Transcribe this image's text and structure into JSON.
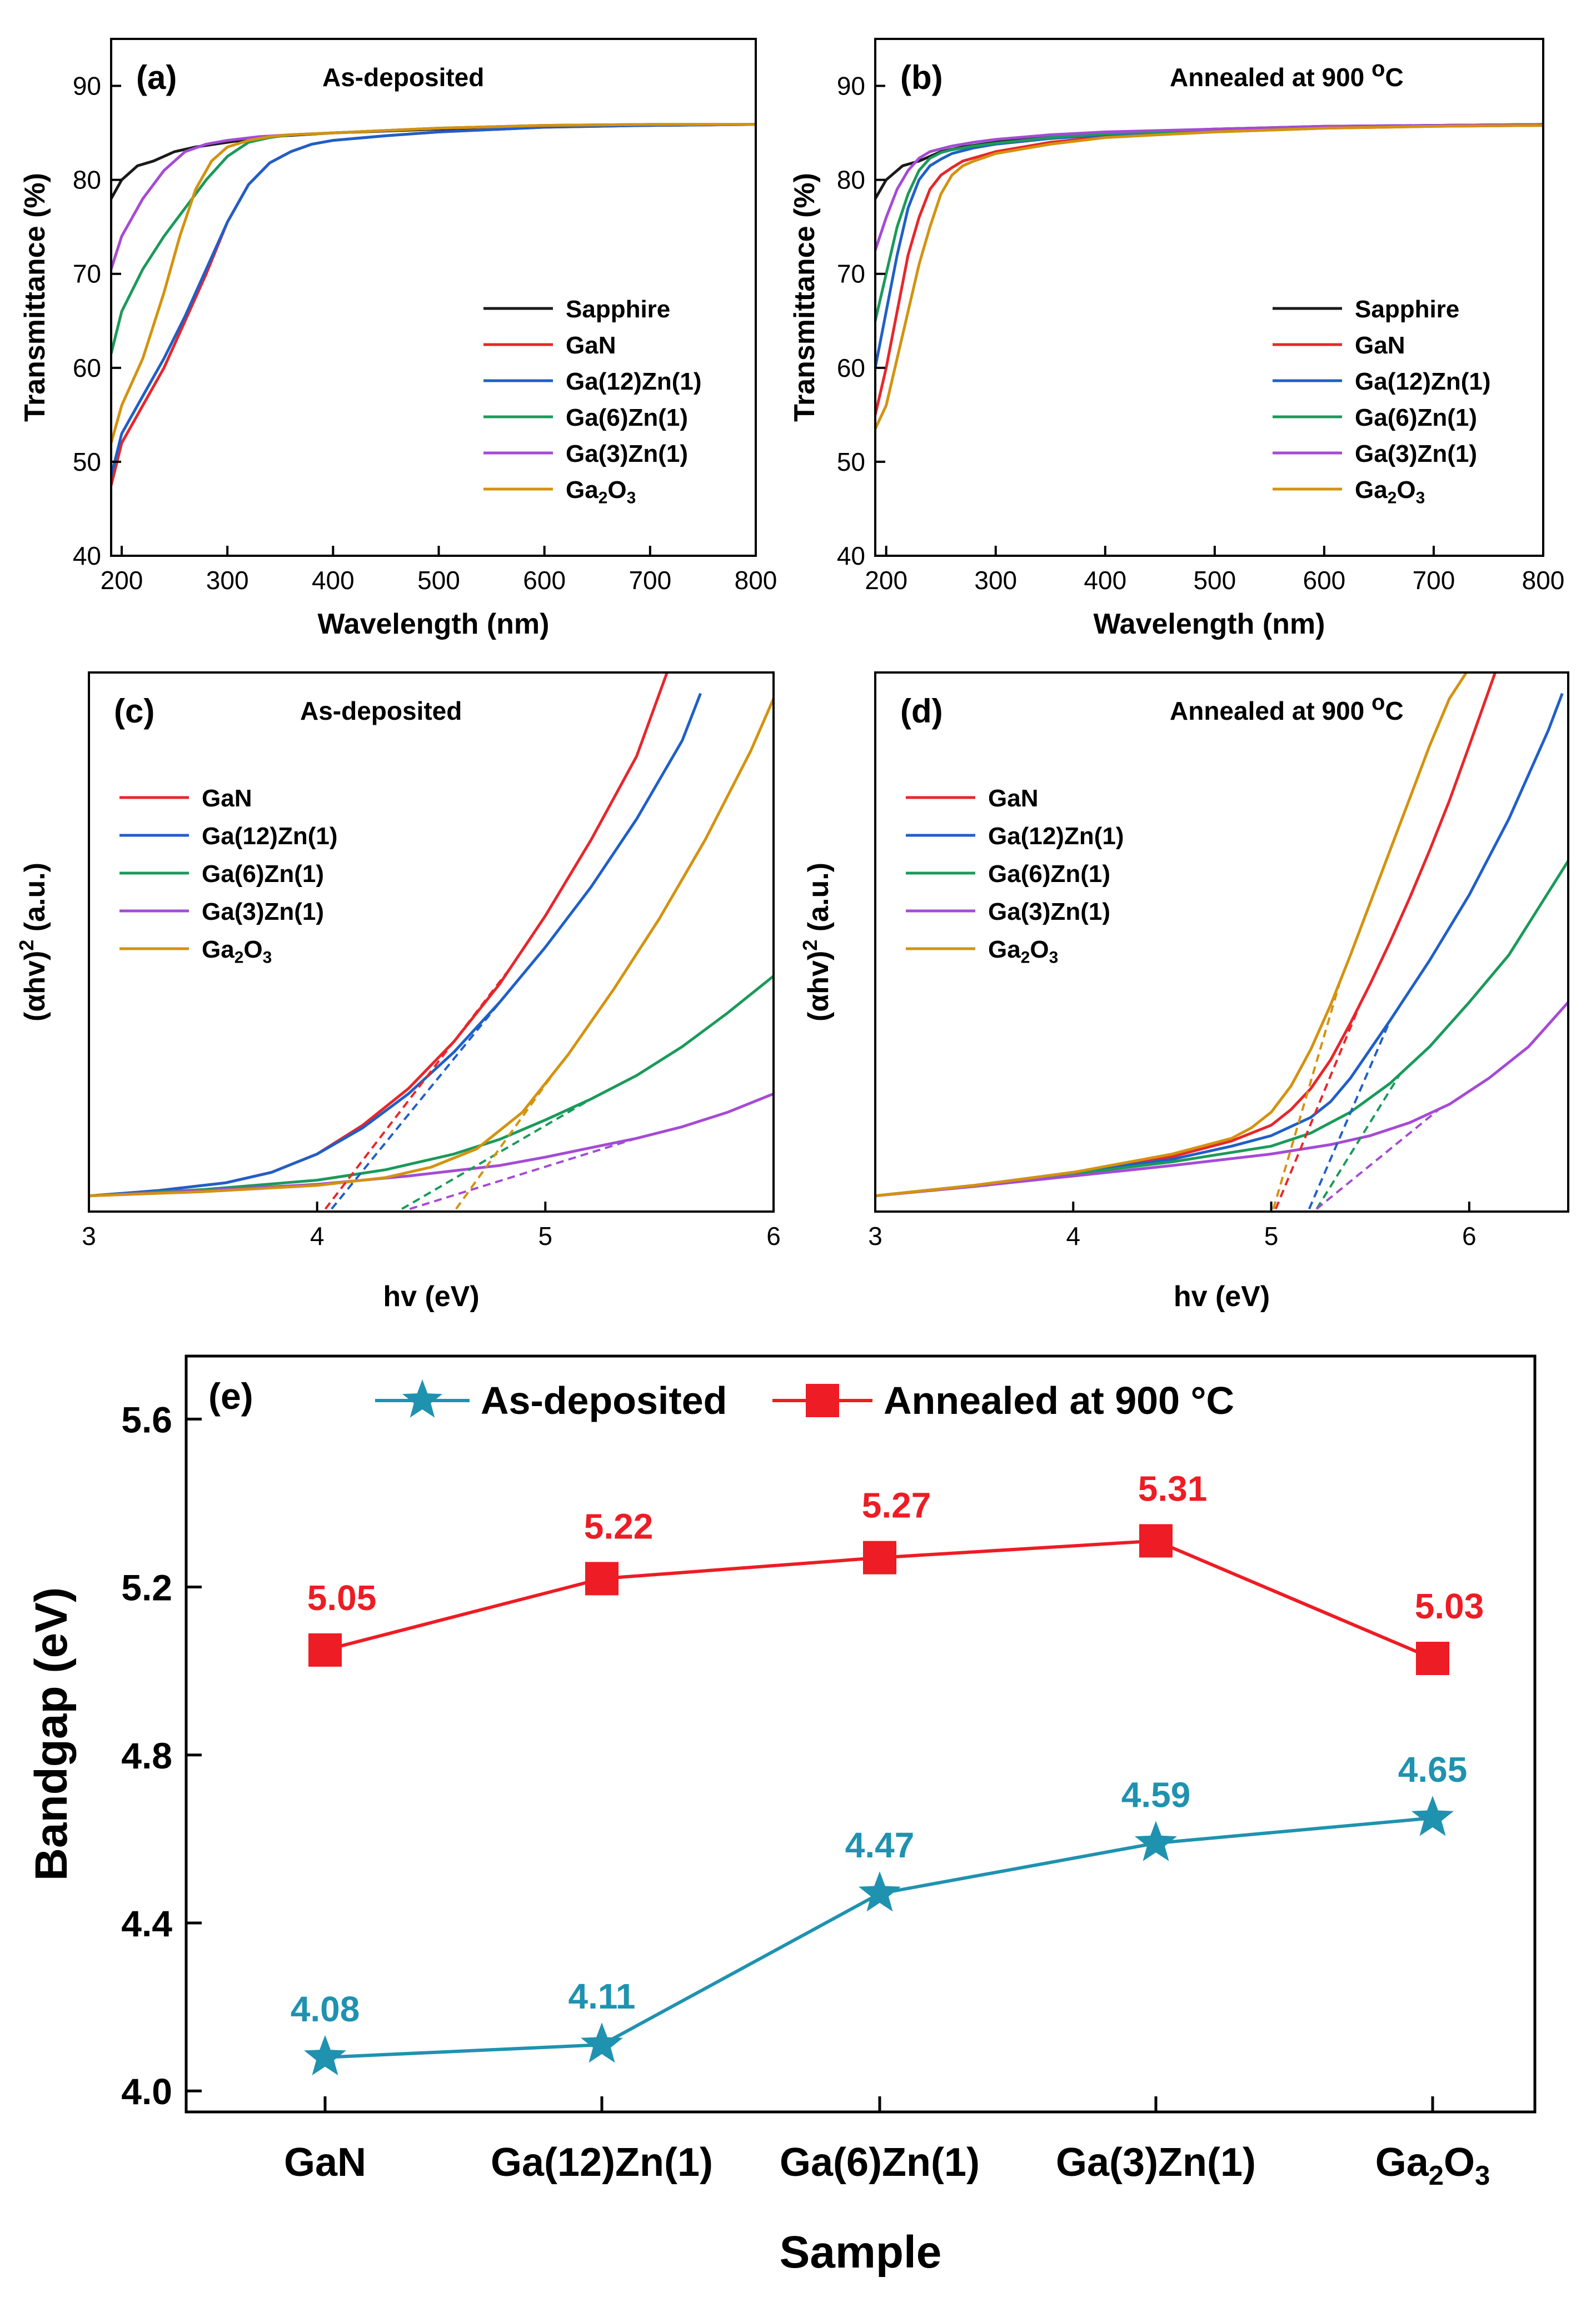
{
  "colors": {
    "sapphire": "#1a1a1a",
    "gan": "#e8262b",
    "ga12zn1": "#1f5fc8",
    "ga6zn1": "#1a9a5a",
    "ga3zn1": "#a54ad6",
    "ga2o3": "#d4920e",
    "as_deposited": "#1f92b0",
    "annealed": "#ee1c24"
  },
  "chart_data": [
    {
      "id": "a",
      "type": "line",
      "panel_label": "(a)",
      "title": "As-deposited",
      "xlabel": "Wavelength (nm)",
      "ylabel": "Transmittance (%)",
      "xlim": [
        190,
        800
      ],
      "ylim": [
        40,
        95
      ],
      "xticks": [
        200,
        300,
        400,
        500,
        600,
        700,
        800
      ],
      "yticks": [
        40,
        50,
        60,
        70,
        80,
        90
      ],
      "legend": "right",
      "series": [
        {
          "name": "Sapphire",
          "key": "sapphire",
          "x": [
            190,
            200,
            215,
            230,
            250,
            270,
            300,
            340,
            400,
            500,
            600,
            700,
            800
          ],
          "y": [
            78,
            80,
            81.5,
            82,
            83,
            83.5,
            84,
            84.6,
            85,
            85.4,
            85.7,
            85.8,
            85.9
          ]
        },
        {
          "name": "GaN",
          "key": "gan",
          "x": [
            190,
            200,
            220,
            240,
            260,
            280,
            300,
            320,
            340,
            360,
            380,
            400,
            450,
            500,
            600,
            700,
            800
          ],
          "y": [
            47.5,
            52,
            56,
            60,
            65,
            70,
            75.5,
            79.5,
            81.8,
            83,
            83.8,
            84.2,
            84.7,
            85.1,
            85.6,
            85.8,
            85.9
          ]
        },
        {
          "name": "Ga(12)Zn(1)",
          "key": "ga12zn1",
          "x": [
            190,
            200,
            220,
            240,
            260,
            280,
            300,
            320,
            340,
            360,
            380,
            400,
            450,
            500,
            600,
            700,
            800
          ],
          "y": [
            48.5,
            53,
            57,
            61,
            65.5,
            70.5,
            75.5,
            79.5,
            81.8,
            83,
            83.8,
            84.2,
            84.7,
            85.1,
            85.6,
            85.8,
            85.9
          ]
        },
        {
          "name": "Ga(6)Zn(1)",
          "key": "ga6zn1",
          "x": [
            190,
            200,
            220,
            240,
            260,
            280,
            300,
            320,
            340,
            360,
            400,
            500,
            600,
            700,
            800
          ],
          "y": [
            61.5,
            66,
            70.5,
            74,
            77,
            80,
            82.5,
            84,
            84.5,
            84.8,
            85,
            85.5,
            85.8,
            85.9,
            85.9
          ]
        },
        {
          "name": "Ga(3)Zn(1)",
          "key": "ga3zn1",
          "x": [
            190,
            200,
            220,
            240,
            260,
            280,
            300,
            330,
            360,
            400,
            500,
            600,
            700,
            800
          ],
          "y": [
            70.5,
            74,
            78,
            81,
            83,
            83.8,
            84.2,
            84.6,
            84.8,
            85,
            85.5,
            85.8,
            85.9,
            85.9
          ]
        },
        {
          "name": "Ga2O3",
          "key": "ga2o3",
          "x": [
            190,
            200,
            220,
            240,
            255,
            270,
            285,
            300,
            320,
            340,
            360,
            400,
            500,
            600,
            700,
            800
          ],
          "y": [
            52,
            56,
            61,
            68,
            74,
            79,
            82,
            83.5,
            84.2,
            84.6,
            84.8,
            85,
            85.5,
            85.8,
            85.9,
            85.9
          ]
        }
      ]
    },
    {
      "id": "b",
      "type": "line",
      "panel_label": "(b)",
      "title": "Annealed at 900 ",
      "title_sup": "o",
      "title_after": "C",
      "xlabel": "Wavelength (nm)",
      "ylabel": "Transmittance (%)",
      "xlim": [
        190,
        800
      ],
      "ylim": [
        40,
        95
      ],
      "xticks": [
        200,
        300,
        400,
        500,
        600,
        700,
        800
      ],
      "yticks": [
        40,
        50,
        60,
        70,
        80,
        90
      ],
      "legend": "right",
      "series": [
        {
          "name": "Sapphire",
          "key": "sapphire",
          "x": [
            190,
            200,
            215,
            230,
            250,
            270,
            300,
            340,
            400,
            500,
            600,
            700,
            800
          ],
          "y": [
            78,
            80,
            81.5,
            82,
            83,
            83.5,
            84,
            84.6,
            85,
            85.4,
            85.7,
            85.8,
            85.9
          ]
        },
        {
          "name": "GaN",
          "key": "gan",
          "x": [
            190,
            200,
            210,
            220,
            230,
            240,
            250,
            260,
            270,
            300,
            350,
            400,
            500,
            600,
            700,
            800
          ],
          "y": [
            55,
            60,
            66,
            72,
            76,
            79,
            80.5,
            81.3,
            82,
            83,
            84,
            84.6,
            85.1,
            85.5,
            85.7,
            85.8
          ]
        },
        {
          "name": "Ga(12)Zn(1)",
          "key": "ga12zn1",
          "x": [
            190,
            200,
            210,
            220,
            230,
            240,
            250,
            260,
            280,
            300,
            350,
            400,
            500,
            600,
            700,
            800
          ],
          "y": [
            60,
            66,
            72,
            77,
            80,
            81.5,
            82.2,
            82.8,
            83.4,
            83.8,
            84.4,
            84.8,
            85.2,
            85.6,
            85.8,
            85.9
          ]
        },
        {
          "name": "Ga(6)Zn(1)",
          "key": "ga6zn1",
          "x": [
            190,
            200,
            210,
            220,
            230,
            240,
            250,
            260,
            280,
            300,
            350,
            400,
            500,
            600,
            700,
            800
          ],
          "y": [
            65,
            70,
            75,
            78.5,
            81,
            82.3,
            82.9,
            83.2,
            83.6,
            83.9,
            84.5,
            84.9,
            85.3,
            85.6,
            85.8,
            85.9
          ]
        },
        {
          "name": "Ga(3)Zn(1)",
          "key": "ga3zn1",
          "x": [
            190,
            200,
            210,
            220,
            230,
            240,
            250,
            260,
            280,
            300,
            350,
            400,
            500,
            600,
            700,
            800
          ],
          "y": [
            72.5,
            76,
            79,
            81,
            82.3,
            83,
            83.3,
            83.6,
            84,
            84.3,
            84.8,
            85.1,
            85.4,
            85.7,
            85.8,
            85.9
          ]
        },
        {
          "name": "Ga2O3",
          "key": "ga2o3",
          "x": [
            190,
            200,
            210,
            220,
            230,
            240,
            250,
            260,
            270,
            280,
            300,
            350,
            400,
            500,
            600,
            700,
            800
          ],
          "y": [
            53.5,
            56,
            61,
            66,
            71,
            75,
            78.5,
            80.5,
            81.5,
            82,
            82.8,
            83.8,
            84.5,
            85.1,
            85.5,
            85.7,
            85.8
          ]
        }
      ]
    },
    {
      "id": "c",
      "type": "line",
      "panel_label": "(c)",
      "title": "As-deposited",
      "xlabel": "hv (eV)",
      "ylabel": "(αhv)",
      "ylabel_sup": "2",
      "ylabel_after": " (a.u.)",
      "xlim": [
        3,
        6
      ],
      "ylim": [
        -0.3,
        10
      ],
      "xticks": [
        3,
        4,
        5,
        6
      ],
      "yticks": [],
      "legend": "top-left",
      "series": [
        {
          "name": "GaN",
          "key": "gan",
          "x": [
            3,
            3.3,
            3.6,
            3.8,
            4,
            4.2,
            4.4,
            4.6,
            4.8,
            5,
            5.2,
            5.4,
            5.55
          ],
          "y": [
            0,
            0.1,
            0.25,
            0.45,
            0.8,
            1.35,
            2.05,
            2.95,
            4.05,
            5.35,
            6.8,
            8.4,
            10.2
          ]
        },
        {
          "name": "Ga(12)Zn(1)",
          "key": "ga12zn1",
          "x": [
            3,
            3.3,
            3.6,
            3.8,
            4,
            4.2,
            4.4,
            4.6,
            4.8,
            5,
            5.2,
            5.4,
            5.6,
            5.68
          ],
          "y": [
            0,
            0.1,
            0.25,
            0.45,
            0.8,
            1.3,
            1.95,
            2.75,
            3.7,
            4.75,
            5.9,
            7.2,
            8.7,
            9.6
          ]
        },
        {
          "name": "Ga(6)Zn(1)",
          "key": "ga6zn1",
          "x": [
            3,
            3.5,
            4,
            4.3,
            4.6,
            4.8,
            5,
            5.2,
            5.4,
            5.6,
            5.8,
            6
          ],
          "y": [
            0,
            0.12,
            0.3,
            0.5,
            0.8,
            1.08,
            1.45,
            1.85,
            2.3,
            2.85,
            3.5,
            4.2
          ]
        },
        {
          "name": "Ga(3)Zn(1)",
          "key": "ga3zn1",
          "x": [
            3,
            3.5,
            4,
            4.4,
            4.8,
            5,
            5.2,
            5.4,
            5.6,
            5.8,
            6
          ],
          "y": [
            0,
            0.1,
            0.22,
            0.38,
            0.58,
            0.74,
            0.92,
            1.1,
            1.32,
            1.6,
            1.95
          ]
        },
        {
          "name": "Ga2O3",
          "key": "ga2o3",
          "x": [
            3,
            3.5,
            4,
            4.3,
            4.5,
            4.7,
            4.9,
            5.1,
            5.3,
            5.5,
            5.7,
            5.9,
            6.05
          ],
          "y": [
            0,
            0.08,
            0.2,
            0.35,
            0.55,
            0.9,
            1.6,
            2.7,
            3.95,
            5.3,
            6.8,
            8.5,
            10
          ]
        }
      ],
      "tangents": [
        {
          "key": "gan",
          "x0": 4.08,
          "x1": 4.85
        },
        {
          "key": "ga12zn1",
          "x0": 4.11,
          "x1": 4.85
        },
        {
          "key": "ga6zn1",
          "x0": 4.47,
          "x1": 5.2
        },
        {
          "key": "ga3zn1",
          "x0": 4.59,
          "x1": 5.4
        },
        {
          "key": "ga2o3",
          "x0": 4.65,
          "x1": 5.05
        }
      ]
    },
    {
      "id": "d",
      "type": "line",
      "panel_label": "(d)",
      "title": "Annealed at 900 ",
      "title_sup": "o",
      "title_after": "C",
      "xlabel": "hv (eV)",
      "ylabel": "(αhv)",
      "ylabel_sup": "2",
      "ylabel_after": " (a.u.)",
      "xlim": [
        3,
        6.5
      ],
      "ylim": [
        -0.3,
        10
      ],
      "xticks": [
        3,
        4,
        5,
        6
      ],
      "yticks": [],
      "legend": "top-left",
      "series": [
        {
          "name": "GaN",
          "key": "gan",
          "x": [
            3,
            3.5,
            4,
            4.5,
            4.8,
            5,
            5.1,
            5.2,
            5.3,
            5.4,
            5.5,
            5.6,
            5.7,
            5.8,
            5.9,
            6,
            6.15
          ],
          "y": [
            0,
            0.2,
            0.45,
            0.75,
            1.05,
            1.35,
            1.65,
            2.05,
            2.6,
            3.3,
            4.05,
            4.85,
            5.7,
            6.6,
            7.55,
            8.6,
            10.2
          ]
        },
        {
          "name": "Ga(12)Zn(1)",
          "key": "ga12zn1",
          "x": [
            3,
            3.5,
            4,
            4.5,
            4.8,
            5,
            5.2,
            5.3,
            5.4,
            5.5,
            5.6,
            5.8,
            6,
            6.2,
            6.4,
            6.47
          ],
          "y": [
            0,
            0.2,
            0.45,
            0.7,
            0.95,
            1.15,
            1.5,
            1.8,
            2.25,
            2.8,
            3.35,
            4.5,
            5.75,
            7.2,
            8.9,
            9.6
          ]
        },
        {
          "name": "Ga(6)Zn(1)",
          "key": "ga6zn1",
          "x": [
            3,
            3.5,
            4,
            4.5,
            5,
            5.2,
            5.4,
            5.6,
            5.8,
            6,
            6.2,
            6.5
          ],
          "y": [
            0,
            0.2,
            0.42,
            0.65,
            0.95,
            1.2,
            1.6,
            2.15,
            2.85,
            3.7,
            4.6,
            6.4
          ]
        },
        {
          "name": "Ga(3)Zn(1)",
          "key": "ga3zn1",
          "x": [
            3,
            3.5,
            4,
            4.5,
            5,
            5.3,
            5.5,
            5.7,
            5.9,
            6.1,
            6.3,
            6.5
          ],
          "y": [
            0,
            0.18,
            0.38,
            0.58,
            0.8,
            0.98,
            1.15,
            1.4,
            1.75,
            2.25,
            2.85,
            3.7
          ]
        },
        {
          "name": "Ga2O3",
          "key": "ga2o3",
          "x": [
            3,
            3.5,
            4,
            4.5,
            4.8,
            4.9,
            5,
            5.1,
            5.2,
            5.3,
            5.4,
            5.5,
            5.6,
            5.7,
            5.8,
            5.9,
            6.02
          ],
          "y": [
            0,
            0.2,
            0.45,
            0.8,
            1.1,
            1.3,
            1.6,
            2.1,
            2.8,
            3.65,
            4.6,
            5.6,
            6.6,
            7.6,
            8.6,
            9.5,
            10.2
          ]
        }
      ],
      "tangents": [
        {
          "key": "gan",
          "x0": 5.05,
          "x1": 5.45
        },
        {
          "key": "ga12zn1",
          "x0": 5.22,
          "x1": 5.6
        },
        {
          "key": "ga6zn1",
          "x0": 5.27,
          "x1": 5.65
        },
        {
          "key": "ga3zn1",
          "x0": 5.31,
          "x1": 5.85
        },
        {
          "key": "ga2o3",
          "x0": 5.03,
          "x1": 5.35
        }
      ]
    },
    {
      "id": "e",
      "type": "line",
      "panel_label": "(e)",
      "title": "",
      "xlabel": "Sample",
      "ylabel": "Bandgap (eV)",
      "categories": [
        "GaN",
        "Ga(12)Zn(1)",
        "Ga(6)Zn(1)",
        "Ga(3)Zn(1)",
        "Ga2O3"
      ],
      "ylim": [
        3.95,
        5.75
      ],
      "yticks": [
        4.0,
        4.4,
        4.8,
        5.2,
        5.6
      ],
      "ytick_labels": [
        "4.0",
        "4.4",
        "4.8",
        "5.2",
        "5.6"
      ],
      "legend": "top",
      "series": [
        {
          "name": "As-deposited",
          "key": "as_deposited",
          "marker": "star",
          "values": [
            4.08,
            4.11,
            4.47,
            4.59,
            4.65
          ],
          "labels": [
            "4.08",
            "4.11",
            "4.47",
            "4.59",
            "4.65"
          ]
        },
        {
          "name": "Annealed  at 900 °C",
          "key": "annealed",
          "marker": "square",
          "values": [
            5.05,
            5.22,
            5.27,
            5.31,
            5.03
          ],
          "labels": [
            "5.05",
            "5.22",
            "5.27",
            "5.31",
            "5.03"
          ]
        }
      ]
    }
  ]
}
